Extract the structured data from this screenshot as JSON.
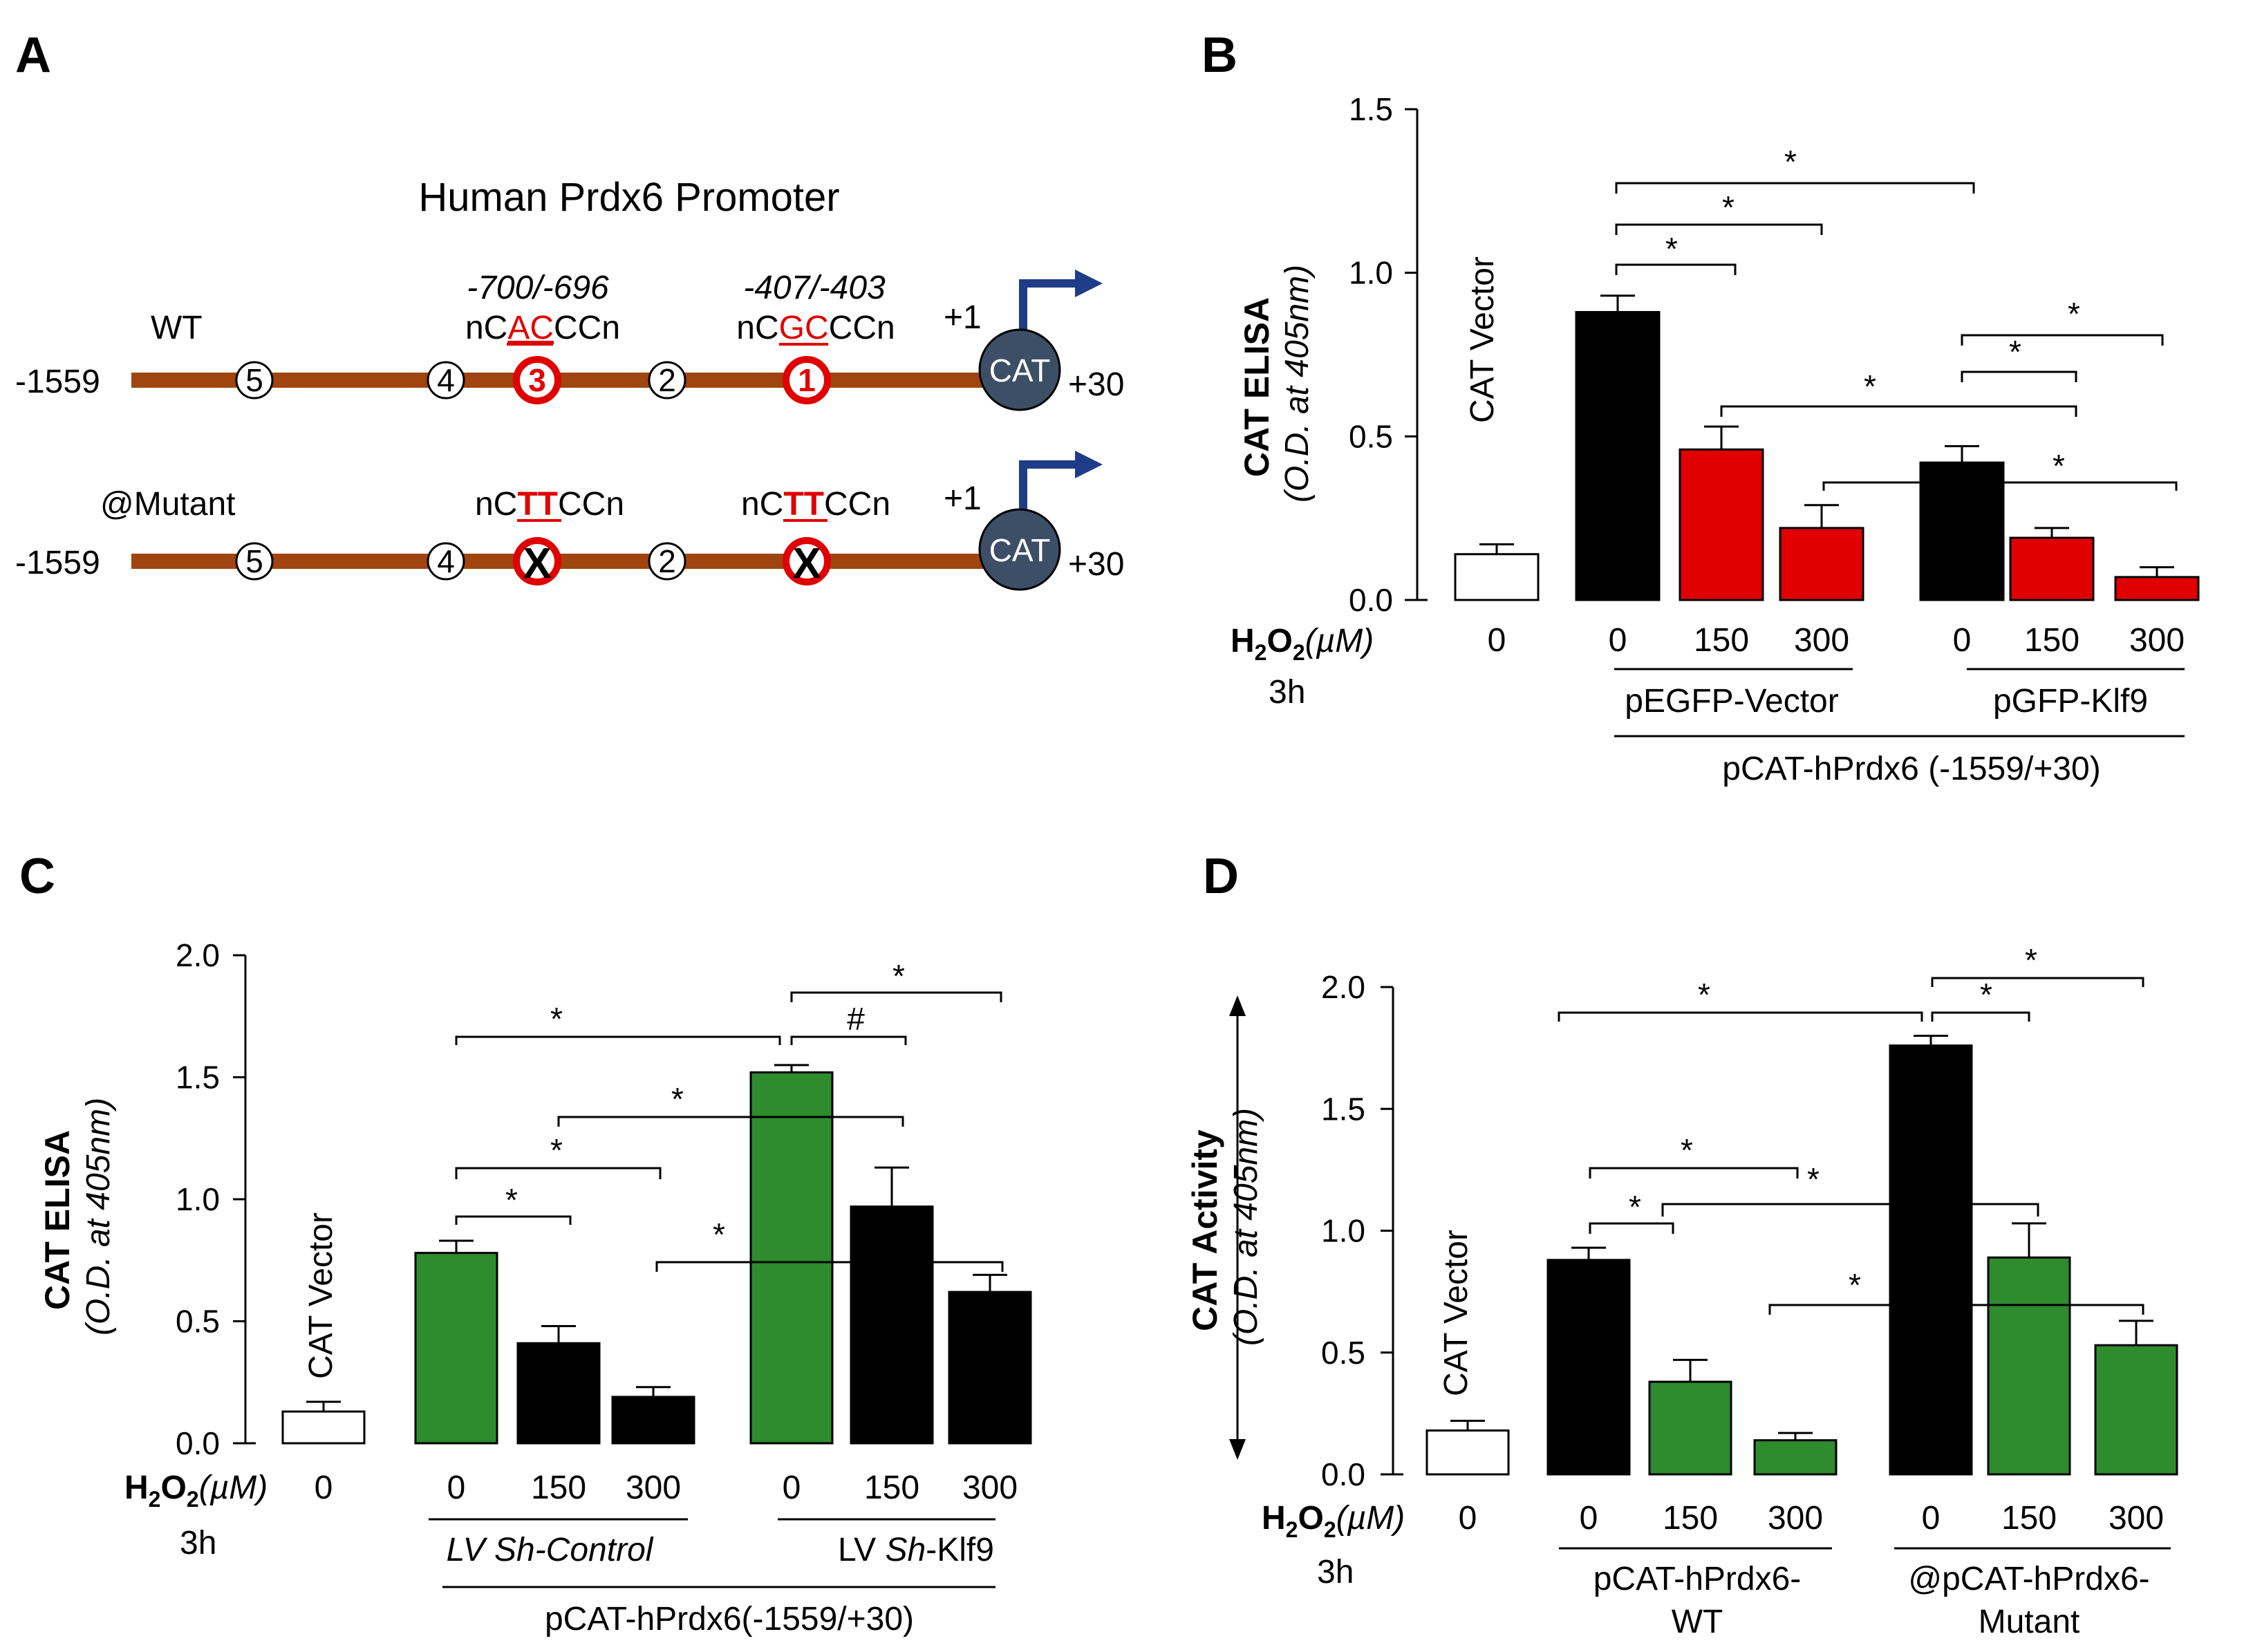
{
  "colors": {
    "black": "#000000",
    "red": "#e00000",
    "green": "#2e8b2e",
    "white": "#ffffff",
    "promoter_line": "#a0450f",
    "cat_circle": "#3d4f66",
    "arrow": "#1f3c88"
  },
  "panel_a": {
    "letter": "A",
    "title": "Human Prdx6 Promoter",
    "wt": {
      "label": "WT",
      "start": "-1559",
      "end": "+30",
      "plus1": "+1",
      "cat": "CAT",
      "site3": {
        "pos": "-700/-696",
        "seq_pre": "nC",
        "seq_mut": "AC",
        "seq_post": "CCn"
      },
      "site1": {
        "pos": "-407/-403",
        "seq_pre": "nC",
        "seq_mut": "GC",
        "seq_post": "CCn"
      },
      "sites": [
        "5",
        "4",
        "3",
        "2",
        "1"
      ]
    },
    "mutant": {
      "label": "@Mutant",
      "start": "-1559",
      "end": "+30",
      "plus1": "+1",
      "cat": "CAT",
      "site3": {
        "seq_pre": "nC",
        "seq_mut": "TT",
        "seq_post": "CCn"
      },
      "site1": {
        "seq_pre": "nC",
        "seq_mut": "TT",
        "seq_post": "CCn"
      },
      "sites": [
        "5",
        "4",
        "X",
        "2",
        "X"
      ]
    }
  },
  "chart_data": [
    {
      "panel": "B",
      "type": "bar",
      "ylabel": "CAT ELISA",
      "ylabel_sub": "(O.D. at 405nm)",
      "ylim": [
        0,
        1.5
      ],
      "yticks": [
        "0.0",
        "0.5",
        "1.0",
        "1.5"
      ],
      "treatment": "H",
      "treatment_sub": "2",
      "treatment_o": "O",
      "treatment_sub2": "2",
      "treatment_unit": "(µM)",
      "time": "3h",
      "vector_label": "CAT Vector",
      "categories": [
        "0",
        "0",
        "150",
        "300",
        "0",
        "150",
        "300"
      ],
      "values": [
        0.14,
        0.88,
        0.46,
        0.22,
        0.42,
        0.19,
        0.07
      ],
      "errors": [
        0.03,
        0.05,
        0.07,
        0.07,
        0.05,
        0.03,
        0.03
      ],
      "colors": [
        "white",
        "black",
        "red",
        "red",
        "black",
        "red",
        "red"
      ],
      "groups": [
        {
          "label": "pEGFP-Vector"
        },
        {
          "label": "pGFP-Klf9"
        }
      ],
      "construct": "pCAT-hPrdx6 (-1559/+30)",
      "sig_marks": [
        "*",
        "*",
        "*",
        "*",
        "*",
        "*",
        "*",
        "*"
      ]
    },
    {
      "panel": "C",
      "type": "bar",
      "ylabel": "CAT ELISA",
      "ylabel_sub": "(O.D. at 405nm)",
      "ylim": [
        0,
        2.0
      ],
      "yticks": [
        "0.0",
        "0.5",
        "1.0",
        "1.5",
        "2.0"
      ],
      "treatment": "H",
      "treatment_sub": "2",
      "treatment_o": "O",
      "treatment_sub2": "2",
      "treatment_unit": "(µM)",
      "time": "3h",
      "vector_label": "CAT Vector",
      "categories": [
        "0",
        "0",
        "150",
        "300",
        "0",
        "150",
        "300"
      ],
      "values": [
        0.13,
        0.78,
        0.41,
        0.19,
        1.52,
        0.97,
        0.62
      ],
      "errors": [
        0.04,
        0.05,
        0.07,
        0.04,
        0.03,
        0.16,
        0.07
      ],
      "colors": [
        "white",
        "green",
        "black",
        "black",
        "green",
        "black",
        "black"
      ],
      "groups": [
        {
          "label_pre": "LV ",
          "label_ital": "Sh",
          "label_post": "-Control"
        },
        {
          "label_pre": "LV ",
          "label_ital": "Sh",
          "label_post": "-Klf9"
        }
      ],
      "construct": "pCAT-hPrdx6(-1559/+30)",
      "sig_marks": [
        "*",
        "#",
        "*",
        "*",
        "*",
        "*",
        "*"
      ]
    },
    {
      "panel": "D",
      "type": "bar",
      "ylabel": "CAT Activity",
      "ylabel_sub": "(O.D. at 405nm)",
      "ylim": [
        0,
        2.0
      ],
      "yticks": [
        "0.0",
        "0.5",
        "1.0",
        "1.5",
        "2.0"
      ],
      "treatment": "H",
      "treatment_sub": "2",
      "treatment_o": "O",
      "treatment_sub2": "2",
      "treatment_unit": "(µM)",
      "time": "3h",
      "vector_label": "CAT Vector",
      "categories": [
        "0",
        "0",
        "150",
        "300",
        "0",
        "150",
        "300"
      ],
      "values": [
        0.18,
        0.88,
        0.38,
        0.14,
        1.76,
        0.89,
        0.53
      ],
      "errors": [
        0.04,
        0.05,
        0.09,
        0.03,
        0.04,
        0.14,
        0.1
      ],
      "colors": [
        "white",
        "black",
        "green",
        "green",
        "black",
        "green",
        "green"
      ],
      "groups": [
        {
          "label1": "pCAT-hPrdx6-",
          "label2": "WT"
        },
        {
          "label1": "@pCAT-hPrdx6-",
          "label2": "Mutant"
        }
      ],
      "sig_marks": [
        "*",
        "*",
        "*",
        "*",
        "*",
        "*",
        "*"
      ]
    }
  ]
}
